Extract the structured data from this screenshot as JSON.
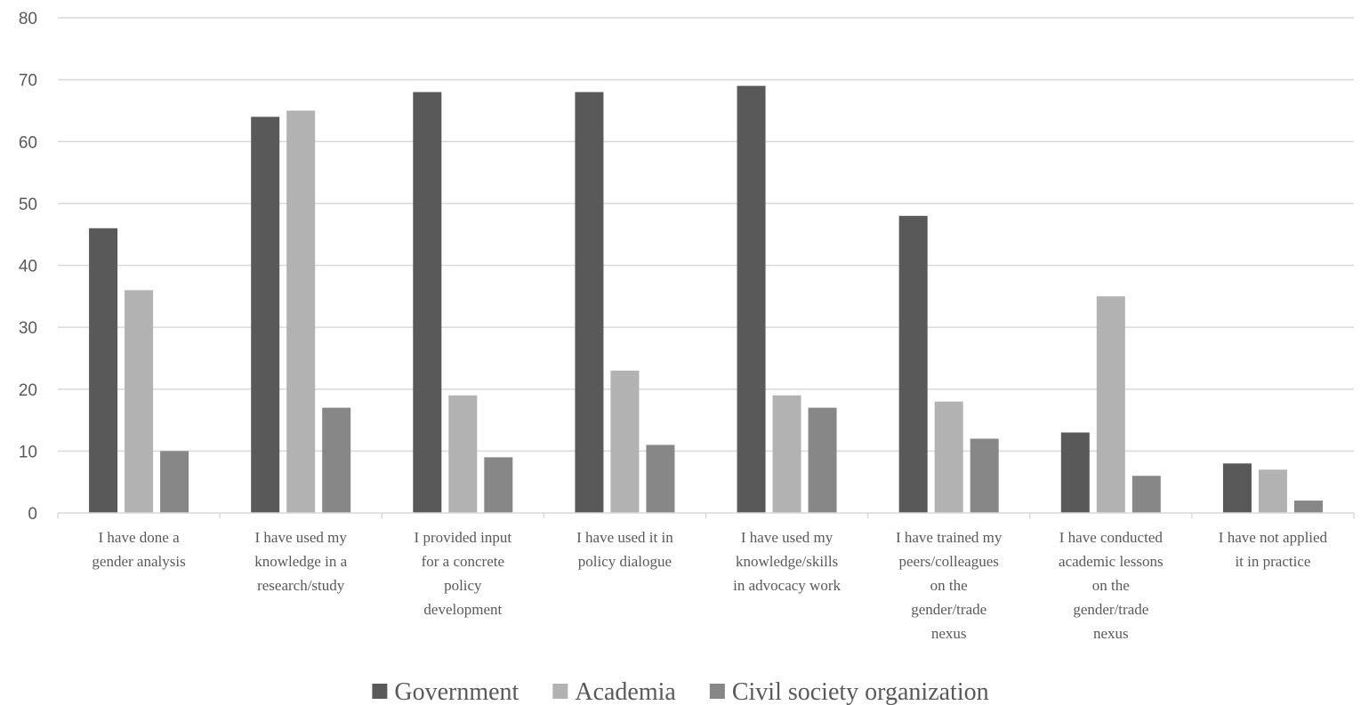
{
  "chart_data": {
    "type": "bar",
    "categories": [
      [
        "I have done a",
        "gender analysis"
      ],
      [
        "I have used my",
        "knowledge in a",
        "research/study"
      ],
      [
        "I provided input",
        "for a concrete",
        "policy",
        "development"
      ],
      [
        "I have used it in",
        "policy dialogue"
      ],
      [
        "I have used my",
        "knowledge/skills",
        "in advocacy work"
      ],
      [
        "I have trained my",
        "peers/colleagues",
        "on the",
        "gender/trade",
        "nexus"
      ],
      [
        "I have conducted",
        "academic lessons",
        "on the",
        "gender/trade",
        "nexus"
      ],
      [
        "I have not applied",
        "it in practice"
      ]
    ],
    "series": [
      {
        "name": "Government",
        "color": "#595959",
        "values": [
          46,
          64,
          68,
          68,
          69,
          48,
          13,
          8
        ]
      },
      {
        "name": "Academia",
        "color": "#b2b2b2",
        "values": [
          36,
          65,
          19,
          23,
          19,
          18,
          35,
          7
        ]
      },
      {
        "name": "Civil society organization",
        "color": "#878787",
        "values": [
          10,
          17,
          9,
          11,
          17,
          12,
          6,
          2
        ]
      }
    ],
    "ylim": [
      0,
      80
    ],
    "yticks": [
      0,
      10,
      20,
      30,
      40,
      50,
      60,
      70,
      80
    ],
    "grid": true,
    "legend_position": "bottom",
    "title": "",
    "xlabel": "",
    "ylabel": ""
  }
}
